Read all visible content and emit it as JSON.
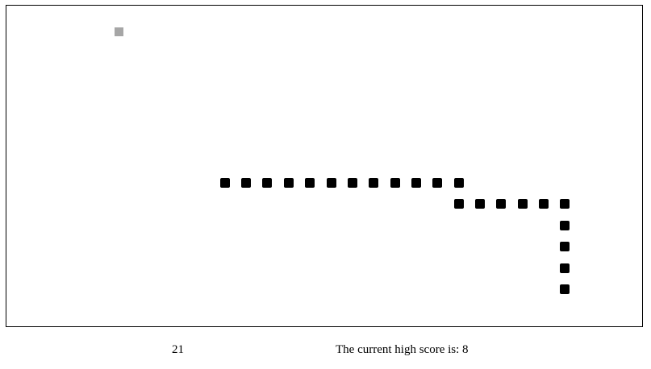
{
  "game": {
    "score": "21",
    "high_score_text": "The current high score is: 8",
    "colors": {
      "snake": "#000000",
      "food": "#a6a6a6",
      "board_border": "#000000",
      "board_background": "#ffffff"
    }
  }
}
